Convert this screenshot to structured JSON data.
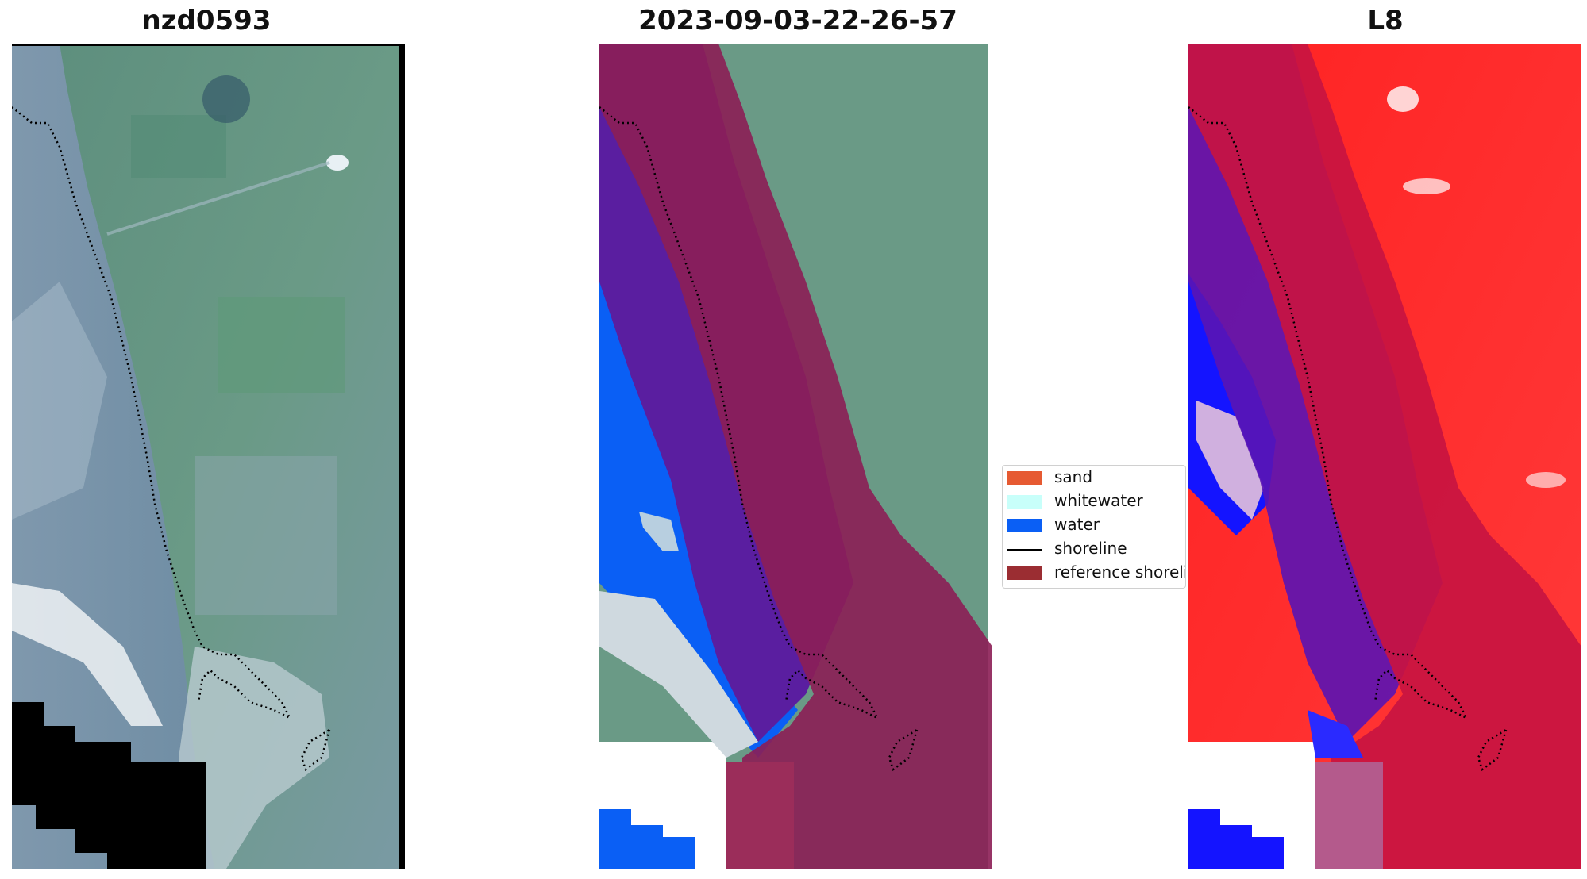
{
  "panels": [
    {
      "title": "nzd0593"
    },
    {
      "title": "2023-09-03-22-26-57"
    },
    {
      "title": "L8"
    }
  ],
  "legend": {
    "items": [
      {
        "label": "sand",
        "color": "#e65a32",
        "kind": "patch"
      },
      {
        "label": "whitewater",
        "color": "#c8fffa",
        "kind": "patch"
      },
      {
        "label": "water",
        "color": "#0a5ff5",
        "kind": "patch"
      },
      {
        "label": "shoreline",
        "color": "#000000",
        "kind": "line"
      },
      {
        "label": "reference shoreline",
        "color": "#9b2d32",
        "kind": "patch"
      }
    ]
  },
  "colors": {
    "sand_overlay": "#8c1e55",
    "water_overlay": "#5a1ea0",
    "index_positive": "#ff1e1e",
    "index_negative": "#1414ff"
  }
}
